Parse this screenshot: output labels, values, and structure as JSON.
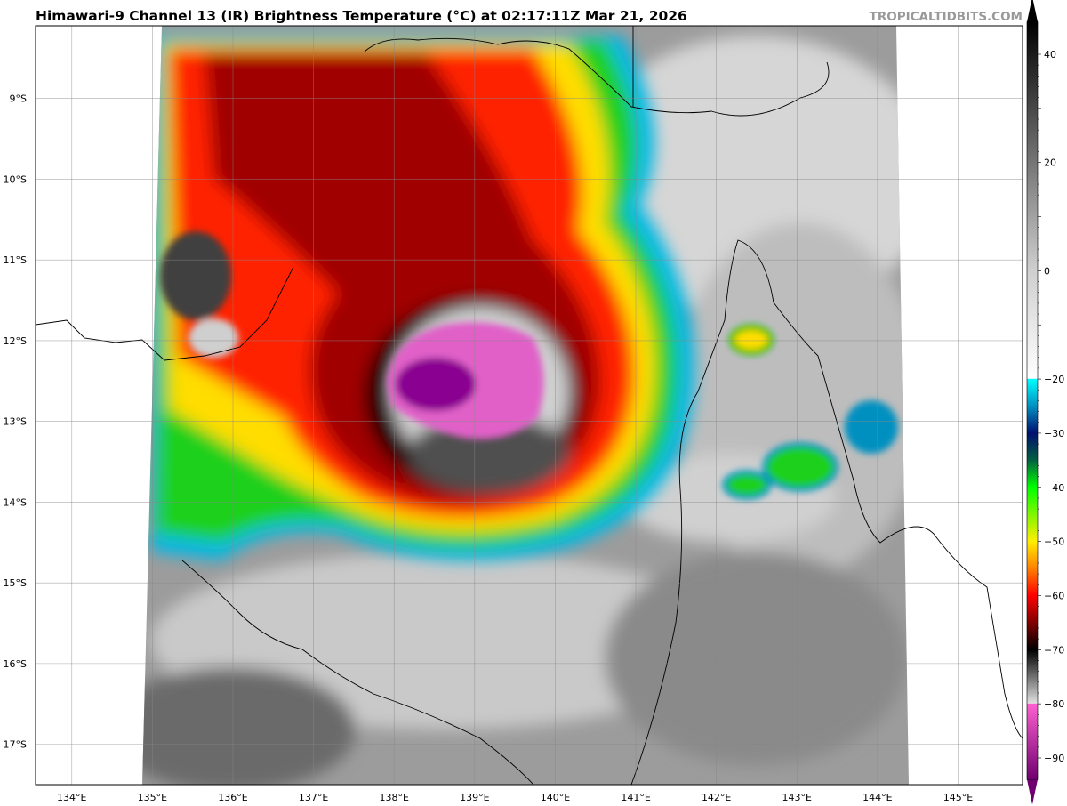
{
  "title": "Himawari-9 Channel 13 (IR) Brightness Temperature (°C) at 02:17:11Z Mar 21, 2026",
  "watermark": "TROPICALTIDBITS.COM",
  "map": {
    "lon_range": [
      133.55,
      145.8
    ],
    "lat_range": [
      -17.5,
      -8.1
    ],
    "lon_ticks": [
      "134°E",
      "135°E",
      "136°E",
      "137°E",
      "138°E",
      "139°E",
      "140°E",
      "141°E",
      "142°E",
      "143°E",
      "144°E",
      "145°E"
    ],
    "lon_values": [
      134,
      135,
      136,
      137,
      138,
      139,
      140,
      141,
      142,
      143,
      144,
      145
    ],
    "lat_ticks": [
      "9°S",
      "10°S",
      "11°S",
      "12°S",
      "13°S",
      "14°S",
      "15°S",
      "16°S",
      "17°S"
    ],
    "lat_values": [
      -9,
      -10,
      -11,
      -12,
      -13,
      -14,
      -15,
      -16,
      -17
    ],
    "grid": true,
    "storm_center": {
      "lon": 138.7,
      "lat": -12.6
    }
  },
  "colorbar": {
    "range": [
      -94,
      46
    ],
    "tick_labels": [
      "40",
      "20",
      "0",
      "−20",
      "−30",
      "−40",
      "−50",
      "−60",
      "−70",
      "−80",
      "−90"
    ],
    "tick_values": [
      40,
      20,
      0,
      -20,
      -30,
      -40,
      -50,
      -60,
      -70,
      -80,
      -90
    ],
    "stops": [
      {
        "v": 46,
        "c": "#000000"
      },
      {
        "v": 0,
        "c": "#cfcfcf"
      },
      {
        "v": -19.9,
        "c": "#ffffff"
      },
      {
        "v": -20,
        "c": "#00ffff"
      },
      {
        "v": -25,
        "c": "#0090c0"
      },
      {
        "v": -30,
        "c": "#001070"
      },
      {
        "v": -35,
        "c": "#006040"
      },
      {
        "v": -40,
        "c": "#00ff00"
      },
      {
        "v": -50,
        "c": "#ffee00"
      },
      {
        "v": -55,
        "c": "#ff8000"
      },
      {
        "v": -60,
        "c": "#ff0000"
      },
      {
        "v": -70,
        "c": "#000000"
      },
      {
        "v": -79.9,
        "c": "#e0e0e0"
      },
      {
        "v": -80,
        "c": "#ff60d0"
      },
      {
        "v": -94,
        "c": "#700070"
      }
    ]
  }
}
